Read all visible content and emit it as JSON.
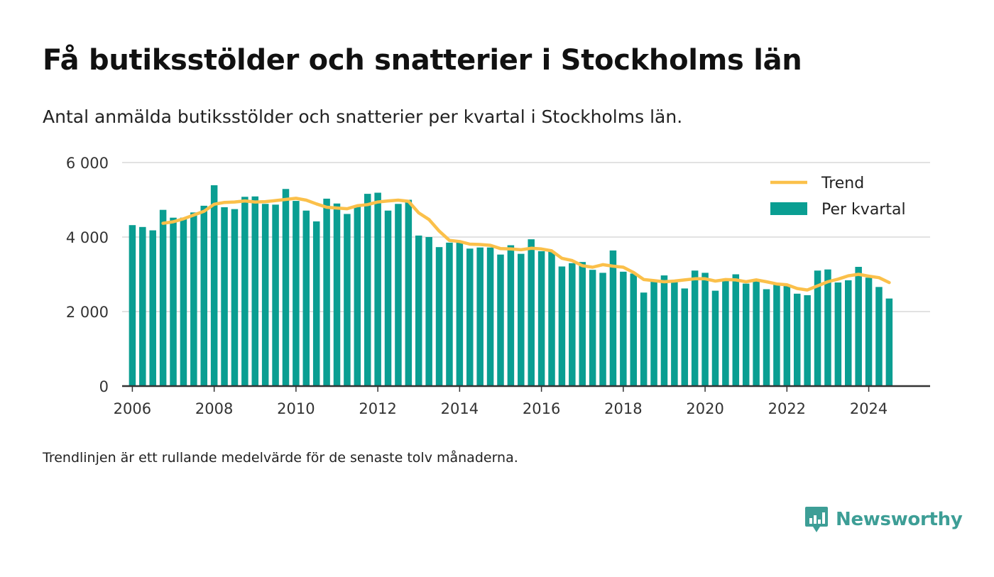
{
  "header": {
    "title": "Få butiksstölder och snatterier i Stockholms län",
    "subtitle": "Antal anmälda butiksstölder och snatterier per kvartal i Stockholms län."
  },
  "footer": {
    "note": "Trendlinjen är ett rullande medelvärde för de senaste tolv månaderna.",
    "brand": "Newsworthy"
  },
  "colors": {
    "bars": "#0a9e92",
    "trend": "#fbc04a",
    "grid": "#d8d8d8",
    "axis": "#333333",
    "brand": "#3d9e96"
  },
  "icons": {
    "logo": "newsworthy-chart-bubble-icon"
  },
  "chart_data": {
    "type": "bar",
    "title": "",
    "xlabel": "",
    "ylabel": "",
    "ylim": [
      0,
      6000
    ],
    "yticks": [
      0,
      2000,
      4000,
      6000
    ],
    "ytick_labels": [
      "0",
      "2 000",
      "4 000",
      "6 000"
    ],
    "xticks": [
      2006,
      2008,
      2010,
      2012,
      2014,
      2016,
      2018,
      2020,
      2022,
      2024
    ],
    "xlim": [
      2005.75,
      2025.5
    ],
    "grid": true,
    "legend": {
      "position": "top-right",
      "entries": [
        "Trend",
        "Per kvartal"
      ]
    },
    "x": [
      2006.0,
      2006.25,
      2006.5,
      2006.75,
      2007.0,
      2007.25,
      2007.5,
      2007.75,
      2008.0,
      2008.25,
      2008.5,
      2008.75,
      2009.0,
      2009.25,
      2009.5,
      2009.75,
      2010.0,
      2010.25,
      2010.5,
      2010.75,
      2011.0,
      2011.25,
      2011.5,
      2011.75,
      2012.0,
      2012.25,
      2012.5,
      2012.75,
      2013.0,
      2013.25,
      2013.5,
      2013.75,
      2014.0,
      2014.25,
      2014.5,
      2014.75,
      2015.0,
      2015.25,
      2015.5,
      2015.75,
      2016.0,
      2016.25,
      2016.5,
      2016.75,
      2017.0,
      2017.25,
      2017.5,
      2017.75,
      2018.0,
      2018.25,
      2018.5,
      2018.75,
      2019.0,
      2019.25,
      2019.5,
      2019.75,
      2020.0,
      2020.25,
      2020.5,
      2020.75,
      2021.0,
      2021.25,
      2021.5,
      2021.75,
      2022.0,
      2022.25,
      2022.5,
      2022.75,
      2023.0,
      2023.25,
      2023.5,
      2023.75,
      2024.0,
      2024.25,
      2024.5
    ],
    "series": [
      {
        "name": "Per kvartal",
        "type": "bar",
        "values": [
          4320,
          4270,
          4180,
          4730,
          4520,
          4520,
          4660,
          4840,
          5390,
          4800,
          4750,
          5080,
          5090,
          4890,
          4870,
          5290,
          4970,
          4710,
          4420,
          5030,
          4900,
          4620,
          4840,
          5160,
          5190,
          4710,
          4890,
          5000,
          4040,
          4000,
          3730,
          3850,
          3850,
          3690,
          3720,
          3720,
          3530,
          3780,
          3550,
          3940,
          3620,
          3620,
          3210,
          3300,
          3330,
          3120,
          3040,
          3640,
          3070,
          3020,
          2510,
          2830,
          2970,
          2820,
          2620,
          3100,
          3040,
          2560,
          2870,
          3000,
          2750,
          2810,
          2600,
          2720,
          2720,
          2480,
          2440,
          3100,
          3130,
          2780,
          2840,
          3200,
          2910,
          2660,
          2350
        ]
      },
      {
        "name": "Trend",
        "type": "line",
        "values": [
          null,
          null,
          null,
          4370,
          4410,
          4490,
          4590,
          4690,
          4880,
          4930,
          4940,
          4970,
          4940,
          4950,
          4980,
          5010,
          5040,
          4990,
          4890,
          4800,
          4780,
          4760,
          4840,
          4870,
          4940,
          4970,
          4990,
          4960,
          4650,
          4470,
          4160,
          3910,
          3880,
          3810,
          3800,
          3780,
          3690,
          3680,
          3660,
          3700,
          3680,
          3630,
          3430,
          3370,
          3230,
          3190,
          3260,
          3220,
          3190,
          3050,
          2860,
          2830,
          2800,
          2820,
          2850,
          2880,
          2880,
          2820,
          2860,
          2850,
          2800,
          2850,
          2800,
          2740,
          2720,
          2620,
          2580,
          2690,
          2800,
          2870,
          2960,
          3000,
          2950,
          2910,
          2780
        ]
      }
    ]
  }
}
